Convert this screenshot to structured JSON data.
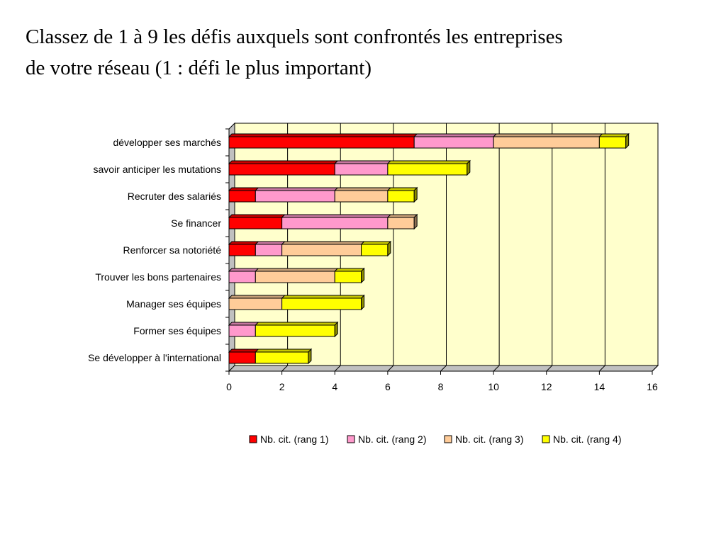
{
  "title": {
    "line1": "Classez de 1 à 9 les défis auxquels sont confrontés les entreprises",
    "line2": "de votre réseau (1 : défi le plus important)"
  },
  "chart_data": {
    "type": "bar",
    "orientation": "horizontal",
    "stacked": true,
    "style": "3d",
    "categories": [
      "développer ses marchés",
      "savoir anticiper les mutations",
      "Recruter des salariés",
      "Se financer",
      "Renforcer sa notoriété",
      "Trouver les bons partenaires",
      "Manager ses équipes",
      "Former ses équipes",
      "Se développer à l'international"
    ],
    "series": [
      {
        "name": "Nb. cit. (rang 1)",
        "color": "#ff0000",
        "values": [
          7,
          4,
          1,
          2,
          1,
          0,
          0,
          0,
          1
        ]
      },
      {
        "name": "Nb. cit. (rang 2)",
        "color": "#ff99cc",
        "values": [
          3,
          2,
          3,
          4,
          1,
          1,
          0,
          1,
          0
        ]
      },
      {
        "name": "Nb. cit. (rang 3)",
        "color": "#ffcc99",
        "values": [
          4,
          0,
          2,
          1,
          3,
          3,
          2,
          0,
          0
        ]
      },
      {
        "name": "Nb. cit. (rang 4)",
        "color": "#ffff00",
        "values": [
          1,
          3,
          1,
          0,
          1,
          1,
          3,
          3,
          2
        ]
      }
    ],
    "xlim": [
      0,
      16
    ],
    "xticks": [
      0,
      2,
      4,
      6,
      8,
      10,
      12,
      14,
      16
    ],
    "grid": true,
    "legend_position": "bottom",
    "plot_background": "#ffffcc"
  }
}
